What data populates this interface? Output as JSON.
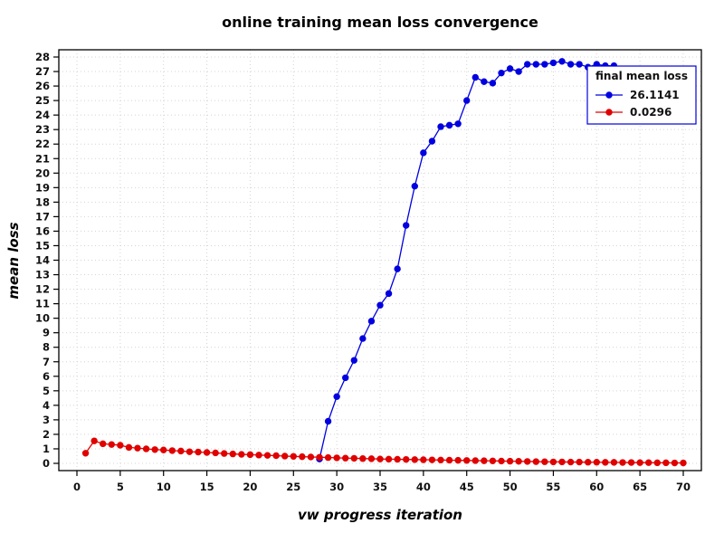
{
  "page": {
    "background": "#ffffff"
  },
  "chart_data": {
    "type": "line",
    "title": "online training mean loss convergence",
    "xlabel": "vw progress iteration",
    "ylabel": "mean loss",
    "xlim": [
      0,
      70
    ],
    "ylim": [
      0,
      28
    ],
    "x_tick_step": 5,
    "y_tick_step": 1,
    "grid": "dotted-lightgray",
    "colors": {
      "blue": "#0000e0",
      "red": "#e00000",
      "grid": "#d4d4d4",
      "axis": "#000000"
    },
    "legend": {
      "title": "final mean loss",
      "position": "top-right",
      "entries": [
        {
          "label": "26.1141",
          "color": "#0000e0"
        },
        {
          "label": "0.0296",
          "color": "#e00000"
        }
      ]
    },
    "series": [
      {
        "name": "26.1141",
        "color": "#0000e0",
        "marker": "circle",
        "line": true,
        "x": [
          28,
          29,
          30,
          31,
          32,
          33,
          34,
          35,
          36,
          37,
          38,
          39,
          40,
          41,
          42,
          43,
          44,
          45,
          46,
          47,
          48,
          49,
          50,
          51,
          52,
          53,
          54,
          55,
          56,
          57,
          58,
          59,
          60,
          61,
          62
        ],
        "y": [
          0.3,
          2.9,
          4.6,
          5.9,
          7.1,
          8.6,
          9.8,
          10.9,
          11.7,
          13.4,
          16.4,
          19.1,
          21.4,
          22.2,
          23.2,
          23.3,
          23.4,
          25.0,
          26.6,
          26.3,
          26.2,
          26.9,
          27.2,
          27.0,
          27.5,
          27.5,
          27.5,
          27.6,
          27.7,
          27.5,
          27.5,
          27.3,
          27.5,
          27.4,
          27.4
        ]
      },
      {
        "name": "26.1141",
        "color": "#0000e0",
        "marker": "circle",
        "line": false,
        "x": [
          70
        ],
        "y": [
          26.1
        ]
      },
      {
        "name": "0.0296",
        "color": "#e00000",
        "marker": "circle",
        "line": true,
        "x": [
          1,
          2,
          3,
          4,
          5,
          6,
          7,
          8,
          9,
          10,
          11,
          12,
          13,
          14,
          15,
          16,
          17,
          18,
          19,
          20,
          21,
          22,
          23,
          24,
          25,
          26,
          27,
          28,
          29,
          30,
          31,
          32,
          33,
          34,
          35,
          36,
          37,
          38,
          39,
          40,
          41,
          42,
          43,
          44,
          45,
          46,
          47,
          48,
          49,
          50,
          51,
          52,
          53,
          54,
          55,
          56,
          57,
          58,
          59,
          60,
          61,
          62,
          63,
          64,
          65,
          66,
          67,
          68,
          69,
          70
        ],
        "y": [
          0.7,
          1.55,
          1.35,
          1.3,
          1.25,
          1.1,
          1.05,
          1.0,
          0.95,
          0.92,
          0.88,
          0.85,
          0.8,
          0.78,
          0.75,
          0.72,
          0.68,
          0.65,
          0.62,
          0.6,
          0.57,
          0.55,
          0.53,
          0.5,
          0.48,
          0.46,
          0.44,
          0.42,
          0.4,
          0.38,
          0.36,
          0.35,
          0.33,
          0.32,
          0.3,
          0.29,
          0.28,
          0.27,
          0.26,
          0.25,
          0.24,
          0.23,
          0.22,
          0.21,
          0.2,
          0.19,
          0.18,
          0.17,
          0.16,
          0.15,
          0.14,
          0.13,
          0.12,
          0.11,
          0.1,
          0.1,
          0.09,
          0.09,
          0.08,
          0.08,
          0.07,
          0.07,
          0.06,
          0.06,
          0.05,
          0.05,
          0.04,
          0.04,
          0.03,
          0.03
        ]
      }
    ]
  }
}
